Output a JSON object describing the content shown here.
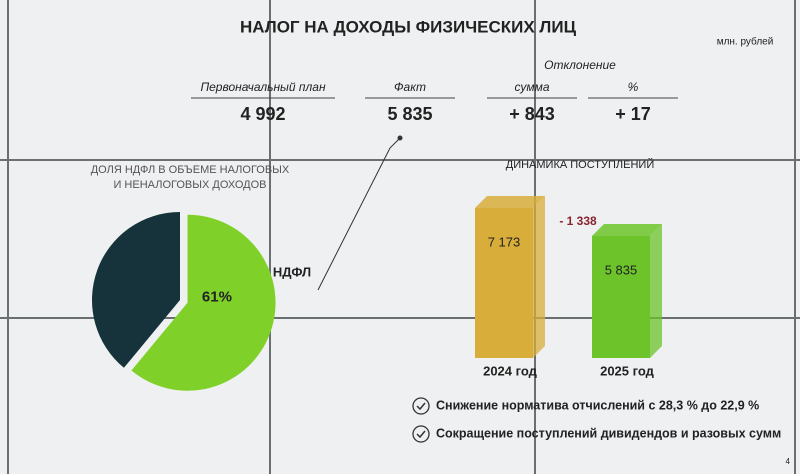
{
  "title": "НАЛОГ НА ДОХОДЫ ФИЗИЧЕСКИХ ЛИЦ",
  "unit": "млн. рублей",
  "table": {
    "group_header": "Отклонение",
    "columns": [
      "Первоначальный план",
      "Факт",
      "сумма",
      "%"
    ],
    "values": [
      "4 992",
      "5 835",
      "+ 843",
      "+ 17"
    ]
  },
  "chart_data": [
    {
      "type": "pie",
      "title": "ДОЛЯ НДФЛ В ОБЪЕМЕ НАЛОГОВЫХ И НЕНАЛОГОВЫХ ДОХОДОВ",
      "categories": [
        "НДФЛ",
        null
      ],
      "values": [
        61,
        39
      ],
      "value_labels": [
        "61%",
        null
      ],
      "colors": [
        "#7fd12a",
        "#16323a"
      ]
    },
    {
      "type": "bar",
      "title": "ДИНАМИКА ПОСТУПЛЕНИЙ",
      "categories": [
        "2024 год",
        "2025 год"
      ],
      "values": [
        7173,
        5835
      ],
      "value_labels": [
        "7 173",
        "5 835"
      ],
      "colors": [
        "#d8ad3a",
        "#6cc42a"
      ],
      "annotation": "- 1 338"
    }
  ],
  "notes": [
    "Снижение норматива отчислений с 28,3 % до 22,9 %",
    "Сокращение поступлений дивидендов и разовых сумм"
  ],
  "page_number": "4"
}
